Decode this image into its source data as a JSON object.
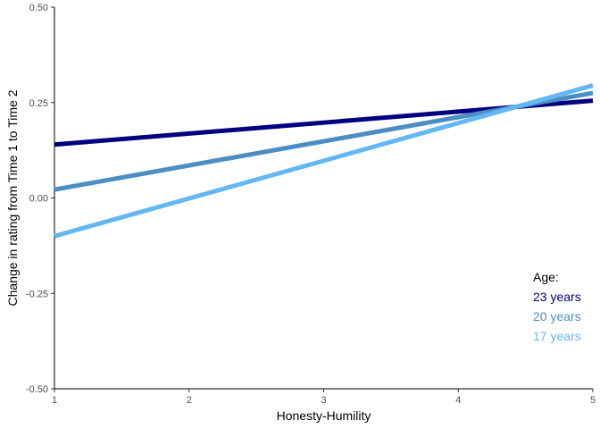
{
  "chart_data": {
    "type": "line",
    "title": "",
    "xlabel": "Honesty-Humility",
    "ylabel": "Change in rating from Time 1 to Time 2",
    "xlim": [
      1,
      5
    ],
    "ylim": [
      -0.5,
      0.5
    ],
    "x_ticks": [
      "1",
      "2",
      "3",
      "4",
      "5"
    ],
    "y_ticks": [
      "-0.50",
      "-0.25",
      "0.00",
      "0.25",
      "0.50"
    ],
    "grid": false,
    "legend": {
      "title": "Age:",
      "placement": "bottom-right inside"
    },
    "series": [
      {
        "name": "23 years",
        "color": "#000080",
        "x": [
          1,
          5
        ],
        "y": [
          0.14,
          0.255
        ]
      },
      {
        "name": "20 years",
        "color": "#4a8ec4",
        "x": [
          1,
          5
        ],
        "y": [
          0.022,
          0.275
        ]
      },
      {
        "name": "17 years",
        "color": "#63b7f5",
        "x": [
          1,
          5
        ],
        "y": [
          -0.1,
          0.295
        ]
      }
    ]
  }
}
